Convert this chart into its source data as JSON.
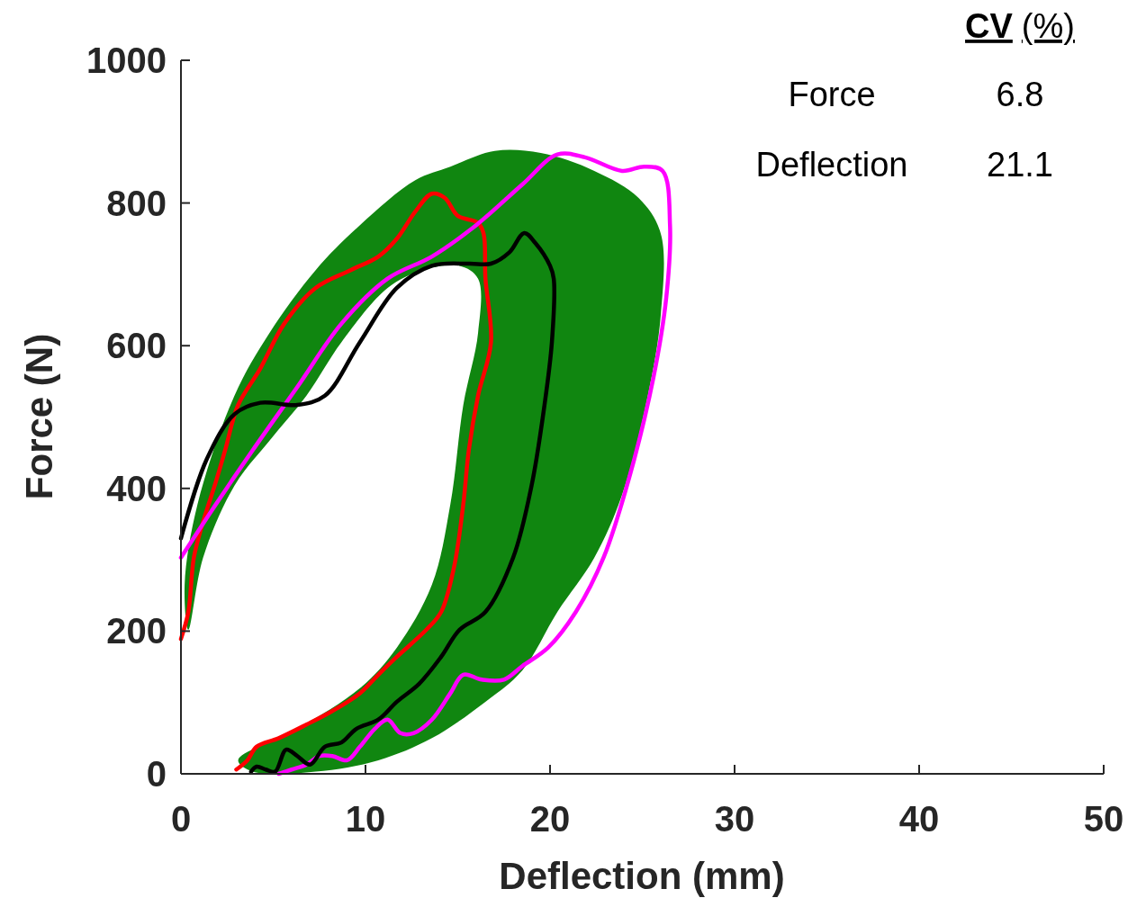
{
  "chart_data": {
    "type": "line",
    "xlabel": "Deflection (mm)",
    "ylabel": "Force (N)",
    "xlim": [
      0,
      50
    ],
    "xticks": [
      0,
      10,
      20,
      30,
      40,
      50
    ],
    "ylim": [
      0,
      1000
    ],
    "yticks": [
      0,
      200,
      400,
      600,
      800,
      1000
    ],
    "grid": false,
    "marker": "none",
    "line_style": "solid",
    "annotations": [
      "CV (%)",
      "Force",
      "6.8",
      "Deflection",
      "21.1"
    ],
    "series": [
      {
        "type": "area",
        "color": "#108610",
        "x": [
          0.2,
          0.9,
          2.9,
          4.8,
          7.3,
          9.7,
          12.7,
          14.6,
          17,
          19.5,
          22.4,
          24.8,
          26,
          26,
          25.3,
          23.9,
          22.4,
          20.4,
          18.5,
          16.5,
          13.6,
          10.7,
          7.3,
          3.9,
          3.1,
          6.3,
          9.7,
          11.7,
          13.6,
          14.6,
          15.3,
          16.1,
          16.1,
          15.1,
          13.1,
          11.2,
          8.7,
          6.8,
          4.8,
          2.9,
          1.2,
          0.4
        ],
        "values": [
          265,
          378,
          530,
          618,
          706,
          769,
          832,
          851,
          873,
          870,
          845,
          807,
          757,
          643,
          530,
          391,
          303,
          227,
          145,
          101,
          50,
          19,
          3,
          3,
          19,
          63,
          120,
          177,
          265,
          378,
          517,
          618,
          694,
          712,
          706,
          681,
          605,
          530,
          467,
          404,
          303,
          202
        ]
      },
      {
        "type": "line",
        "color": "#ff0000",
        "x": [
          0,
          0.4,
          0.7,
          1.2,
          1.9,
          2.4,
          3.1,
          4.3,
          5.6,
          7.3,
          9.2,
          10.7,
          11.7,
          12.7,
          13.6,
          14.3,
          15,
          16.1,
          16.4,
          16.5,
          16.8,
          16.1,
          15.6,
          15.3,
          14.8,
          14.1,
          13.3,
          11.7,
          10.7,
          9.7,
          8.2,
          6.8,
          5.3,
          4.1,
          3.6,
          3
        ],
        "values": [
          189,
          227,
          303,
          353,
          410,
          454,
          517,
          568,
          631,
          681,
          706,
          725,
          750,
          788,
          813,
          807,
          782,
          772,
          757,
          694,
          605,
          530,
          454,
          378,
          290,
          227,
          202,
          164,
          139,
          113,
          88,
          69,
          50,
          38,
          19,
          6
        ]
      },
      {
        "type": "line",
        "color": "#ff00ff",
        "x": [
          0,
          1.9,
          3.9,
          6.3,
          8.7,
          11.2,
          13.6,
          16,
          18.5,
          20.4,
          21.9,
          23.9,
          25.1,
          26.1,
          26.5,
          26.3,
          25.6,
          24.3,
          22.9,
          21.4,
          19.9,
          18.5,
          17.5,
          16.3,
          15.3,
          14.6,
          13.6,
          12.6,
          11.9,
          11.2,
          10.5,
          9.7,
          9,
          8.2,
          7.5,
          6.8,
          6,
          5.3
        ],
        "values": [
          303,
          378,
          454,
          542,
          631,
          694,
          725,
          769,
          826,
          868,
          864,
          845,
          851,
          845,
          769,
          668,
          555,
          416,
          303,
          227,
          177,
          151,
          132,
          132,
          139,
          113,
          76,
          57,
          57,
          76,
          63,
          38,
          19,
          25,
          25,
          13,
          6,
          0
        ]
      },
      {
        "type": "line",
        "color": "#000000",
        "x": [
          0,
          1.4,
          2.9,
          4.3,
          6.3,
          7.8,
          9.7,
          11.7,
          13.6,
          15.6,
          16.8,
          17.8,
          18.6,
          19.2,
          20,
          20.2,
          20.1,
          19.7,
          19,
          18,
          16.5,
          15.1,
          14.1,
          12.9,
          11.7,
          10.7,
          9.5,
          8.7,
          7.8,
          7,
          6.3,
          5.7,
          5.1,
          4.6,
          4.1,
          3.8
        ],
        "values": [
          330,
          441,
          504,
          520,
          517,
          530,
          605,
          681,
          712,
          715,
          715,
          731,
          758,
          744,
          712,
          694,
          605,
          517,
          404,
          303,
          227,
          202,
          164,
          126,
          101,
          76,
          63,
          44,
          38,
          13,
          25,
          34,
          3,
          6,
          10,
          3
        ]
      }
    ]
  }
}
